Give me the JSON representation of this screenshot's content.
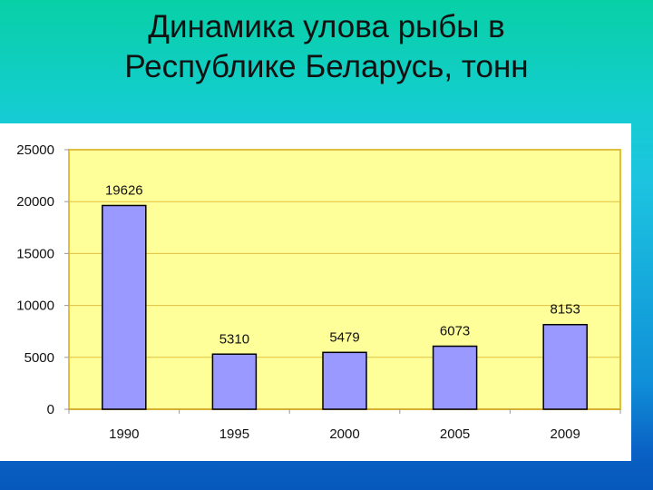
{
  "chart_data": {
    "type": "bar",
    "title_lines": [
      "Динамика улова рыбы в",
      "Республике Беларусь, тонн"
    ],
    "categories": [
      "1990",
      "1995",
      "2000",
      "2005",
      "2009"
    ],
    "values": [
      19626,
      5310,
      5479,
      6073,
      8153
    ],
    "data_labels": [
      "19626",
      "5310",
      "5479",
      "6073",
      "8153"
    ],
    "ylim": [
      0,
      25000
    ],
    "yticks": [
      "0",
      "5000",
      "10000",
      "15000",
      "20000",
      "25000"
    ],
    "xlabel": "",
    "ylabel": "",
    "grid": true,
    "legend": "none",
    "colors": {
      "bar": "#9999ff",
      "plot_bg": "#ffff99",
      "grid": "#e0c040"
    }
  }
}
